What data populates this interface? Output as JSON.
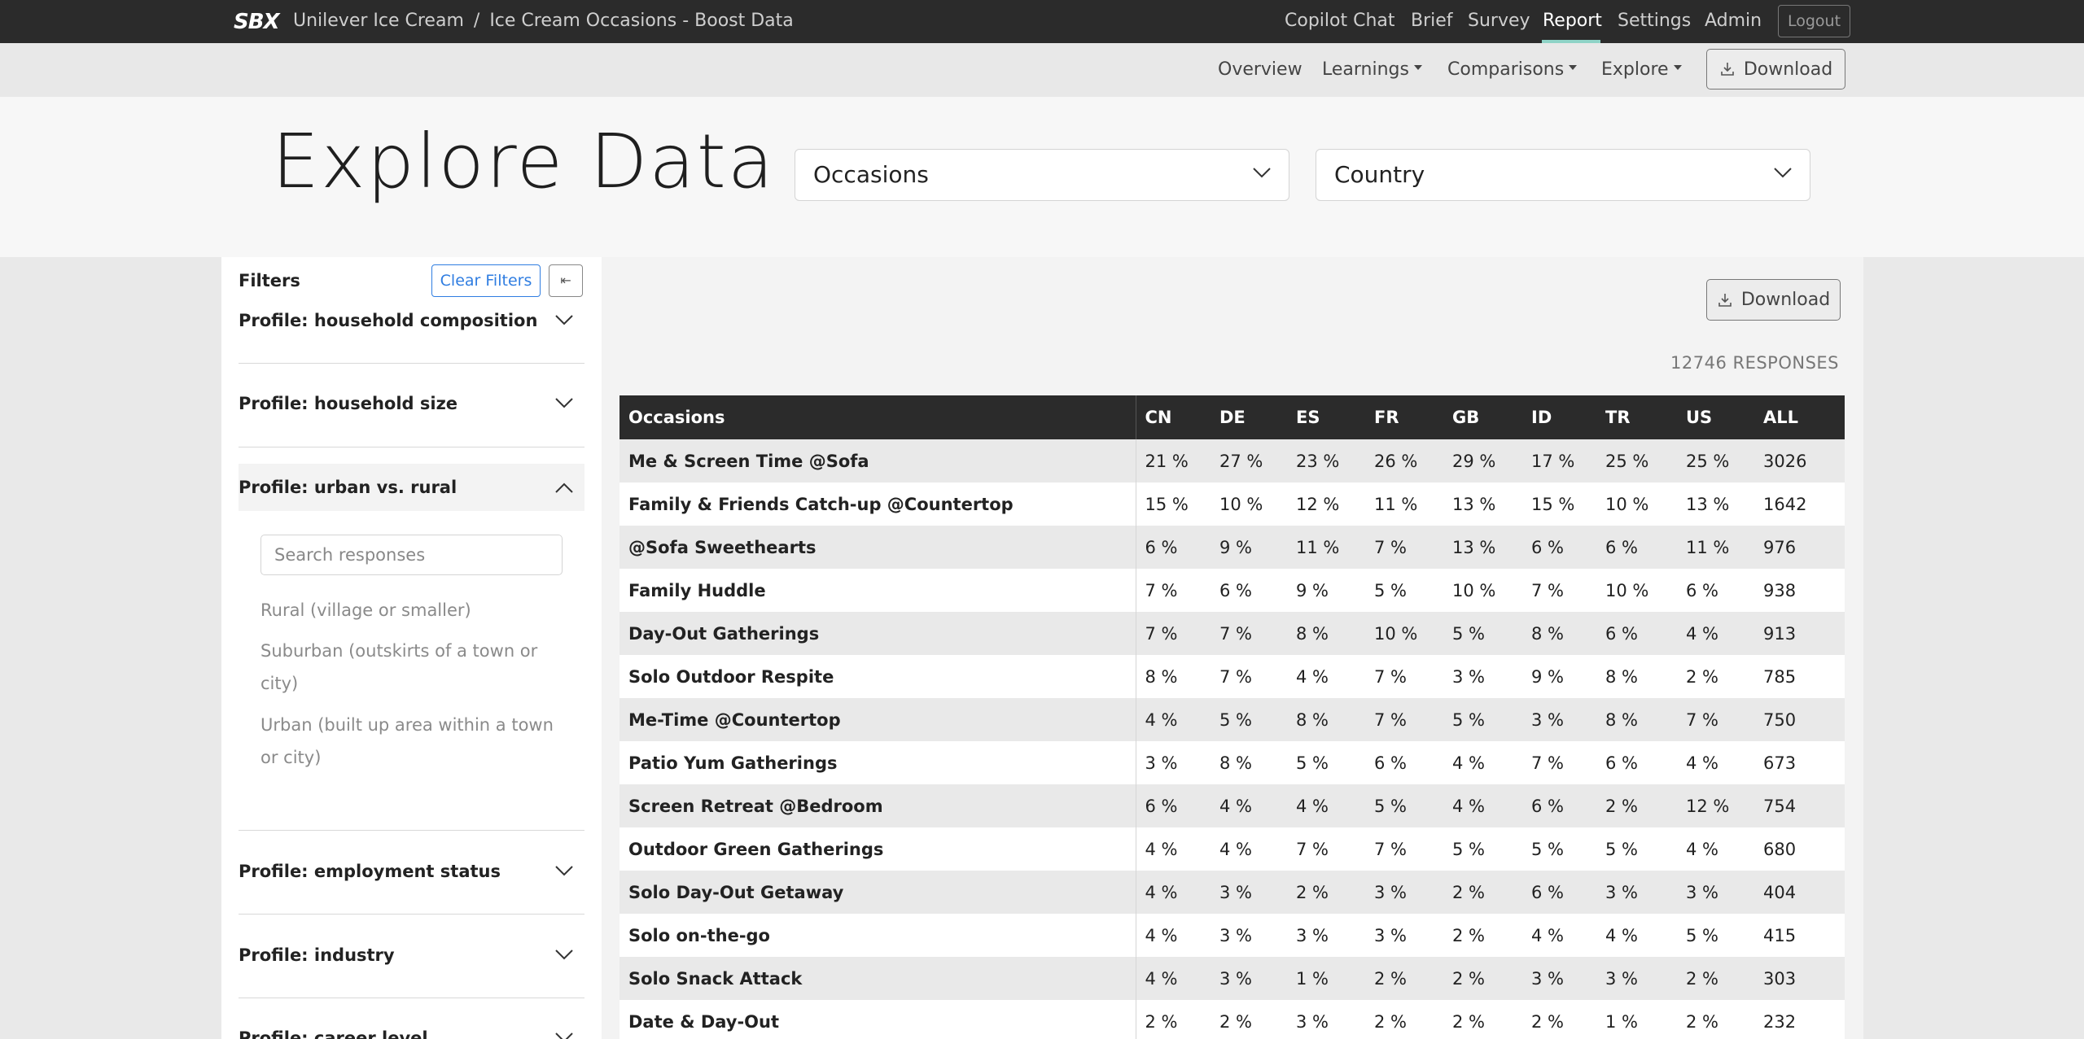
{
  "topbar": {
    "brand": "SBX",
    "breadcrumb": [
      "Unilever Ice Cream",
      "Ice Cream Occasions - Boost Data"
    ],
    "breadcrumb_sep": "/",
    "nav": [
      "Copilot Chat",
      "Brief",
      "Survey",
      "Report",
      "Settings",
      "Admin"
    ],
    "active_nav": "Report",
    "logout_label": "Logout"
  },
  "subnav": {
    "overview": "Overview",
    "learnings": "Learnings",
    "comparisons": "Comparisons",
    "explore": "Explore",
    "download": "Download"
  },
  "header": {
    "title": "Explore Data",
    "select_rows": "Occasions",
    "select_cols": "Country"
  },
  "filters": {
    "title": "Filters",
    "clear_label": "Clear Filters",
    "collapse_glyph": "⇤",
    "facets": [
      "Profile: household composition",
      "Profile: household size",
      "Profile: urban vs. rural",
      "Profile: employment status",
      "Profile: industry",
      "Profile: career level"
    ],
    "search_placeholder": "Search responses",
    "options": [
      "Rural (village or smaller)",
      "Suburban (outskirts of a town or city)",
      "Urban (built up area within a town or city)"
    ]
  },
  "table": {
    "download": "Download",
    "responses": "12746 RESPONSES",
    "columns": [
      "Occasions",
      "CN",
      "DE",
      "ES",
      "FR",
      "GB",
      "ID",
      "TR",
      "US",
      "ALL"
    ],
    "rows": [
      [
        "Me & Screen Time @Sofa",
        "21 %",
        "27 %",
        "23 %",
        "26 %",
        "29 %",
        "17 %",
        "25 %",
        "25 %",
        "3026"
      ],
      [
        "Family & Friends Catch-up @Countertop",
        "15 %",
        "10 %",
        "12 %",
        "11 %",
        "13 %",
        "15 %",
        "10 %",
        "13 %",
        "1642"
      ],
      [
        "@Sofa Sweethearts",
        "6 %",
        "9 %",
        "11 %",
        "7 %",
        "13 %",
        "6 %",
        "6 %",
        "11 %",
        "976"
      ],
      [
        "Family Huddle",
        "7 %",
        "6 %",
        "9 %",
        "5 %",
        "10 %",
        "7 %",
        "10 %",
        "6 %",
        "938"
      ],
      [
        "Day-Out Gatherings",
        "7 %",
        "7 %",
        "8 %",
        "10 %",
        "5 %",
        "8 %",
        "6 %",
        "4 %",
        "913"
      ],
      [
        "Solo Outdoor Respite",
        "8 %",
        "7 %",
        "4 %",
        "7 %",
        "3 %",
        "9 %",
        "8 %",
        "2 %",
        "785"
      ],
      [
        "Me-Time @Countertop",
        "4 %",
        "5 %",
        "8 %",
        "7 %",
        "5 %",
        "3 %",
        "8 %",
        "7 %",
        "750"
      ],
      [
        "Patio Yum Gatherings",
        "3 %",
        "8 %",
        "5 %",
        "6 %",
        "4 %",
        "7 %",
        "6 %",
        "4 %",
        "673"
      ],
      [
        "Screen Retreat @Bedroom",
        "6 %",
        "4 %",
        "4 %",
        "5 %",
        "4 %",
        "6 %",
        "2 %",
        "12 %",
        "754"
      ],
      [
        "Outdoor Green Gatherings",
        "4 %",
        "4 %",
        "7 %",
        "7 %",
        "5 %",
        "5 %",
        "5 %",
        "4 %",
        "680"
      ],
      [
        "Solo Day-Out Getaway",
        "4 %",
        "3 %",
        "2 %",
        "3 %",
        "2 %",
        "6 %",
        "3 %",
        "3 %",
        "404"
      ],
      [
        "Solo on-the-go",
        "4 %",
        "3 %",
        "3 %",
        "3 %",
        "2 %",
        "4 %",
        "4 %",
        "5 %",
        "415"
      ],
      [
        "Solo Snack Attack",
        "4 %",
        "3 %",
        "1 %",
        "2 %",
        "2 %",
        "3 %",
        "3 %",
        "2 %",
        "303"
      ],
      [
        "Date & Day-Out",
        "2 %",
        "2 %",
        "3 %",
        "2 %",
        "2 %",
        "2 %",
        "1 %",
        "2 %",
        "232"
      ]
    ]
  }
}
